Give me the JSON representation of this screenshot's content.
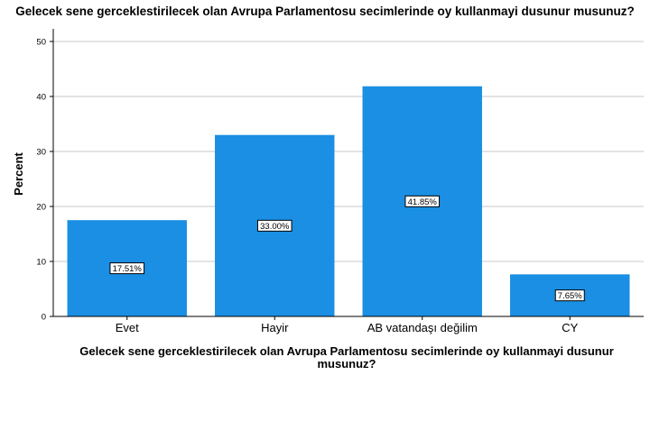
{
  "chart_data": {
    "type": "bar",
    "title": "Gelecek sene gerceklestirilecek olan Avrupa Parlamentosu secimlerinde oy kullanmayi dusunur musunuz?",
    "xlabel_lines": [
      "Gelecek sene gerceklestirilecek olan Avrupa Parlamentosu secimlerinde oy kullanmayi dusunur",
      "musunuz?"
    ],
    "ylabel": "Percent",
    "categories": [
      "Evet",
      "Hayir",
      "AB vatandaşı değilim",
      "CY"
    ],
    "values": [
      17.51,
      33.0,
      41.85,
      7.65
    ],
    "data_labels": [
      "17.51%",
      "33.00%",
      "41.85%",
      "7.65%"
    ],
    "ylim": [
      0,
      50
    ],
    "yticks": [
      0,
      10,
      20,
      30,
      40,
      50
    ],
    "grid": true,
    "bar_color": "#1a8fe3"
  }
}
